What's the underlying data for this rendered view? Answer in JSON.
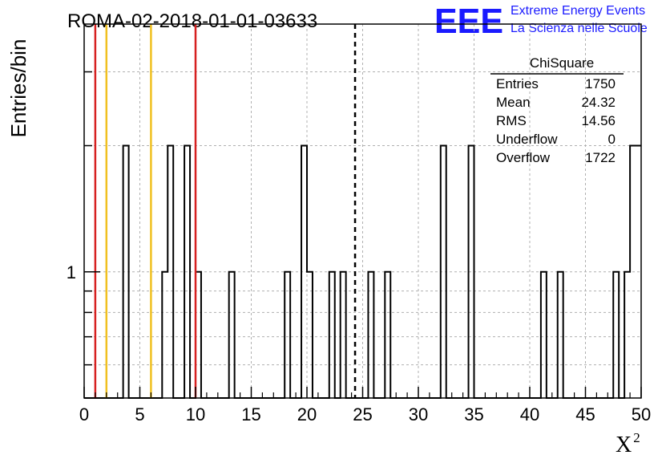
{
  "header": {
    "title": "ROMA-02-2018-01-01-03633",
    "logo_text": "EEE",
    "logo_line1": "Extreme Energy Events",
    "logo_line2": "La Scienza nelle Scuole",
    "logo_color": "#1a1aff"
  },
  "stats_box": {
    "title": "ChiSquare",
    "rows": [
      {
        "label": "Entries",
        "value": "1750"
      },
      {
        "label": "Mean",
        "value": "24.32"
      },
      {
        "label": "RMS",
        "value": "14.56"
      },
      {
        "label": "Underflow",
        "value": "0"
      },
      {
        "label": "Overflow",
        "value": "1722"
      }
    ]
  },
  "chart_data": {
    "type": "histogram",
    "title": "ROMA-02-2018-01-01-03633",
    "xlabel": "X",
    "xlabel_superscript": "2",
    "ylabel": "Entries/bin",
    "xlim": [
      0,
      50
    ],
    "ylim": [
      0.5,
      3.9
    ],
    "yscale": "log",
    "grid": true,
    "bin_width": 0.5,
    "x_ticks": [
      0,
      5,
      10,
      15,
      20,
      25,
      30,
      35,
      40,
      45,
      50
    ],
    "x_tick_labels": [
      "0",
      "5",
      "10",
      "15",
      "20",
      "25",
      "30",
      "35",
      "40",
      "45",
      "50"
    ],
    "y_tick_labels": [
      {
        "value": 1,
        "label": "1"
      }
    ],
    "bins": [
      {
        "x": 3.5,
        "count": 2
      },
      {
        "x": 7.0,
        "count": 1
      },
      {
        "x": 7.5,
        "count": 2
      },
      {
        "x": 9.0,
        "count": 2
      },
      {
        "x": 10.0,
        "count": 1
      },
      {
        "x": 13.0,
        "count": 1
      },
      {
        "x": 18.0,
        "count": 1
      },
      {
        "x": 19.5,
        "count": 2
      },
      {
        "x": 20.0,
        "count": 1
      },
      {
        "x": 22.0,
        "count": 1
      },
      {
        "x": 23.0,
        "count": 1
      },
      {
        "x": 25.5,
        "count": 1
      },
      {
        "x": 27.0,
        "count": 1
      },
      {
        "x": 32.0,
        "count": 2
      },
      {
        "x": 34.5,
        "count": 2
      },
      {
        "x": 41.0,
        "count": 1
      },
      {
        "x": 42.5,
        "count": 1
      },
      {
        "x": 47.5,
        "count": 1
      },
      {
        "x": 48.5,
        "count": 1
      },
      {
        "x": 49.0,
        "count": 2
      },
      {
        "x": 49.5,
        "count": 2
      }
    ],
    "vertical_lines": [
      {
        "x": 1.0,
        "color": "#d62020",
        "style": "solid"
      },
      {
        "x": 2.0,
        "color": "#f0c020",
        "style": "solid"
      },
      {
        "x": 6.0,
        "color": "#f0c020",
        "style": "solid"
      },
      {
        "x": 10.0,
        "color": "#d62020",
        "style": "solid"
      },
      {
        "x": 24.32,
        "color": "#000000",
        "style": "dashed"
      }
    ]
  }
}
